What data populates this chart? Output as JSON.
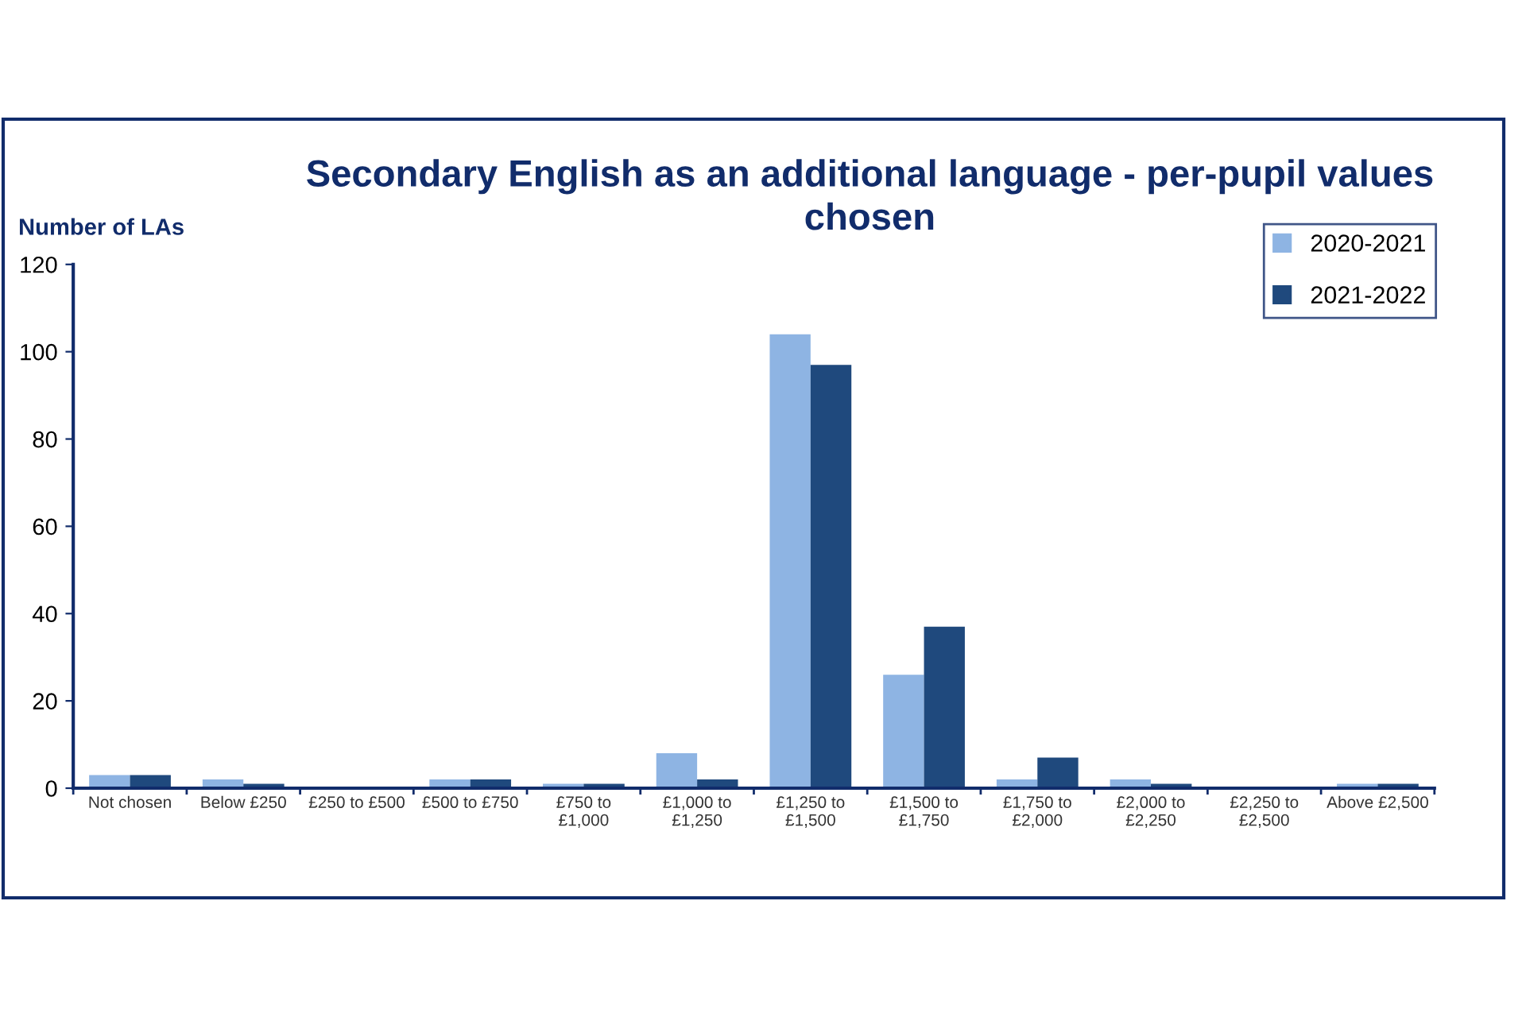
{
  "chart_data": {
    "type": "bar",
    "title": "Secondary English as an additional language - per-pupil values\nchosen",
    "ylabel": "Number of LAs",
    "categories": [
      "Not chosen",
      "Below £250",
      "£250 to £500",
      "£500 to £750",
      "£750 to\n£1,000",
      "£1,000 to\n£1,250",
      "£1,250 to\n£1,500",
      "£1,500 to\n£1,750",
      "£1,750 to\n£2,000",
      "£2,000 to\n£2,250",
      "£2,250 to\n£2,500",
      "Above £2,500"
    ],
    "series": [
      {
        "name": "2020-2021",
        "color": "#8eb4e3",
        "values": [
          3,
          2,
          0,
          2,
          1,
          8,
          104,
          26,
          2,
          2,
          0,
          1
        ]
      },
      {
        "name": "2021-2022",
        "color": "#1f497d",
        "values": [
          3,
          1,
          0,
          2,
          1,
          2,
          97,
          37,
          7,
          1,
          0,
          1
        ]
      }
    ],
    "ylim": [
      0,
      120
    ],
    "yticks": [
      0,
      20,
      40,
      60,
      80,
      100,
      120
    ],
    "grid": false,
    "legend": "top right"
  }
}
